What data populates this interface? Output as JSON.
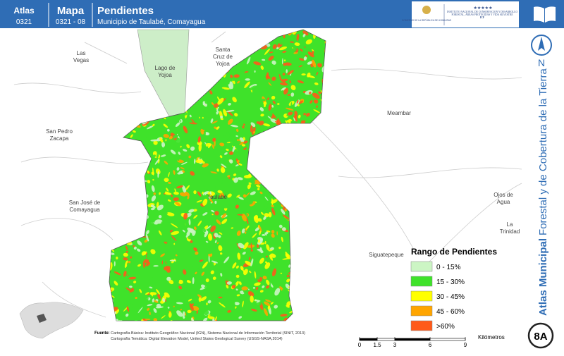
{
  "header": {
    "atlas_label": "Atlas",
    "atlas_code": "0321",
    "map_label": "Mapa",
    "map_code": "0321 - 08",
    "title": "Pendientes",
    "subtitle": "Municipio de Taulabé, Comayagua"
  },
  "logos": {
    "government": "GOBIERNO DE LA REPÚBLICA DE HONDURAS",
    "institute": "INSTITUTO NACIONAL DE CONSERVACIÓN Y DESARROLLO FORESTAL, ÁREAS PROTEGIDAS Y VIDA SILVESTRE",
    "institute_acronym": "ICF"
  },
  "north": "N",
  "side_title": {
    "bold": "Atlas Municipal",
    "regular": "Forestal y de Cobertura de la Tierra"
  },
  "places": [
    [
      "Las",
      "Vegas"
    ],
    [
      "Lago de",
      "Yojoa"
    ],
    [
      "Santa",
      "Cruz de",
      "Yojoa"
    ],
    [
      "Meambar"
    ],
    [
      "San Pedro",
      "Zacapa"
    ],
    [
      "San José de",
      "Comayagua"
    ],
    [
      "Taulabé"
    ],
    [
      "Ojos de",
      "Agua"
    ],
    [
      "La",
      "Trinidad"
    ],
    [
      "Siguatepeque"
    ]
  ],
  "legend": {
    "title": "Rango de Pendientes",
    "items": [
      {
        "label": "0 - 15%",
        "color": "#ccf5c4"
      },
      {
        "label": "15 - 30%",
        "color": "#3fe22a"
      },
      {
        "label": "30 - 45%",
        "color": "#ffff00"
      },
      {
        "label": "45 - 60%",
        "color": "#ffa500"
      },
      {
        "label": ">60%",
        "color": "#ff5a1a"
      }
    ]
  },
  "source": {
    "label": "Fuente:",
    "lines": [
      "Cartografía Básica: Instituto Geográfico Nacional (IGN), Sistema Nacional de Información Territorial (SINIT, 2013)",
      "Cartografía Temática: Digital Elevation Model, United States Geological Survey (USGS-NASA,2014)"
    ]
  },
  "scale": {
    "ticks": [
      0,
      1.5,
      3,
      6,
      9
    ],
    "unit": "Kilómetros"
  },
  "badge": "8A"
}
